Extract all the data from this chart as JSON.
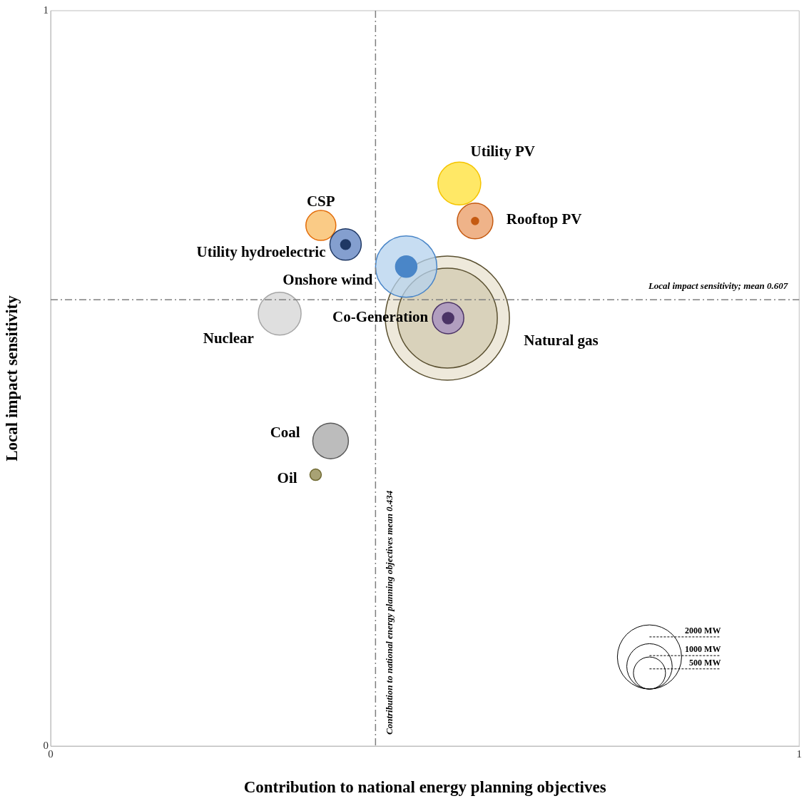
{
  "chart_data": {
    "type": "bubble",
    "xlabel": "Contribution to national energy planning objectives",
    "ylabel": "Local impact sensitivity",
    "xlim": [
      0,
      1
    ],
    "ylim": [
      0,
      1
    ],
    "xticks": [
      0,
      1
    ],
    "yticks": [
      0,
      1
    ],
    "grid": false,
    "size_legend": [
      {
        "value": 2000,
        "label": "2000 MW"
      },
      {
        "value": 1000,
        "label": "1000 MW"
      },
      {
        "value": 500,
        "label": "500 MW"
      }
    ],
    "series": [
      {
        "name": "Natural gas",
        "color": "#5a5030",
        "colors": [
          "#e8e2cf",
          "#d9d2bb"
        ],
        "x": [
          0.53,
          0.53
        ],
        "values": [
          0.582,
          0.582
        ],
        "sizes": [
          7475,
          4840
        ]
      },
      {
        "name": "Utility PV",
        "color": "#f5c400",
        "colors": [
          "#ffe033"
        ],
        "x": [
          0.546
        ],
        "values": [
          0.765
        ],
        "sizes": [
          889
        ]
      },
      {
        "name": "Rooftop PV",
        "color": "#c55a11",
        "colors": [
          "#e99a62",
          "#c55a11"
        ],
        "x": [
          0.567,
          0.567
        ],
        "values": [
          0.714,
          0.714
        ],
        "sizes": [
          617,
          25
        ]
      },
      {
        "name": "CSP",
        "color": "#e36c09",
        "colors": [
          "#f8b95e"
        ],
        "x": [
          0.361
        ],
        "values": [
          0.708
        ],
        "sizes": [
          436
        ]
      },
      {
        "name": "Utility hydroelectric",
        "color": "#1f3864",
        "colors": [
          "#5b7fbf",
          "#1f3864"
        ],
        "x": [
          0.394,
          0.394
        ],
        "values": [
          0.682,
          0.682
        ],
        "sizes": [
          478,
          48
        ]
      },
      {
        "name": "Onshore wind",
        "color": "#4a86c8",
        "colors": [
          "#b4d2ee",
          "#4a86c8"
        ],
        "x": [
          0.475,
          0.475
        ],
        "values": [
          0.652,
          0.652
        ],
        "sizes": [
          1826,
          222
        ]
      },
      {
        "name": "Co-Generation",
        "color": "#4b3366",
        "colors": [
          "#a38cc0",
          "#4b3366"
        ],
        "x": [
          0.531,
          0.531
        ],
        "values": [
          0.582,
          0.582
        ],
        "sizes": [
          478,
          63
        ]
      },
      {
        "name": "Nuclear",
        "color": "#a6a6a6",
        "colors": [
          "#d4d4d4"
        ],
        "x": [
          0.306
        ],
        "values": [
          0.588
        ],
        "sizes": [
          889
        ]
      },
      {
        "name": "Coal",
        "color": "#595959",
        "colors": [
          "#a6a6a6"
        ],
        "x": [
          0.374
        ],
        "values": [
          0.415
        ],
        "sizes": [
          617
        ]
      },
      {
        "name": "Oil",
        "color": "#6e6830",
        "colors": [
          "#8b8345"
        ],
        "x": [
          0.354
        ],
        "values": [
          0.369
        ],
        "sizes": [
          63
        ]
      }
    ],
    "ref_lines": [
      {
        "axis": "x",
        "value": 0.434,
        "label": "Contribution to national energy planning objectives mean 0.434",
        "color": "#7f7f7f",
        "line_style": "dashdot"
      },
      {
        "axis": "y",
        "value": 0.607,
        "label": "Local impact sensitivity; mean 0.607",
        "color": "#7f7f7f",
        "line_style": "dashdot"
      }
    ]
  }
}
